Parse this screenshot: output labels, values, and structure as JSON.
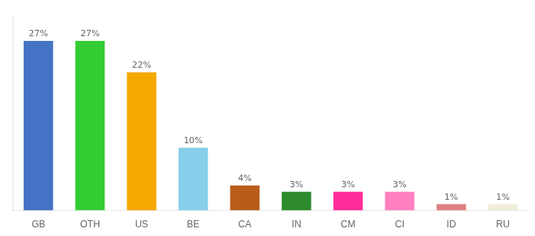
{
  "chart_data": {
    "type": "bar",
    "categories": [
      "GB",
      "OTH",
      "US",
      "BE",
      "CA",
      "IN",
      "CM",
      "CI",
      "ID",
      "RU"
    ],
    "values": [
      27,
      27,
      22,
      10,
      4,
      3,
      3,
      3,
      1,
      1
    ],
    "value_labels": [
      "27%",
      "27%",
      "22%",
      "10%",
      "4%",
      "3%",
      "3%",
      "3%",
      "1%",
      "1%"
    ],
    "colors": [
      "#4472c4",
      "#33cc33",
      "#f5a800",
      "#87ceeb",
      "#b85c1a",
      "#2d8a2d",
      "#ff2d9b",
      "#ff80c0",
      "#e08080",
      "#f0edd8"
    ],
    "ylim": [
      0,
      31
    ],
    "data_labels": true,
    "tick_labels": "x",
    "grid": false
  }
}
